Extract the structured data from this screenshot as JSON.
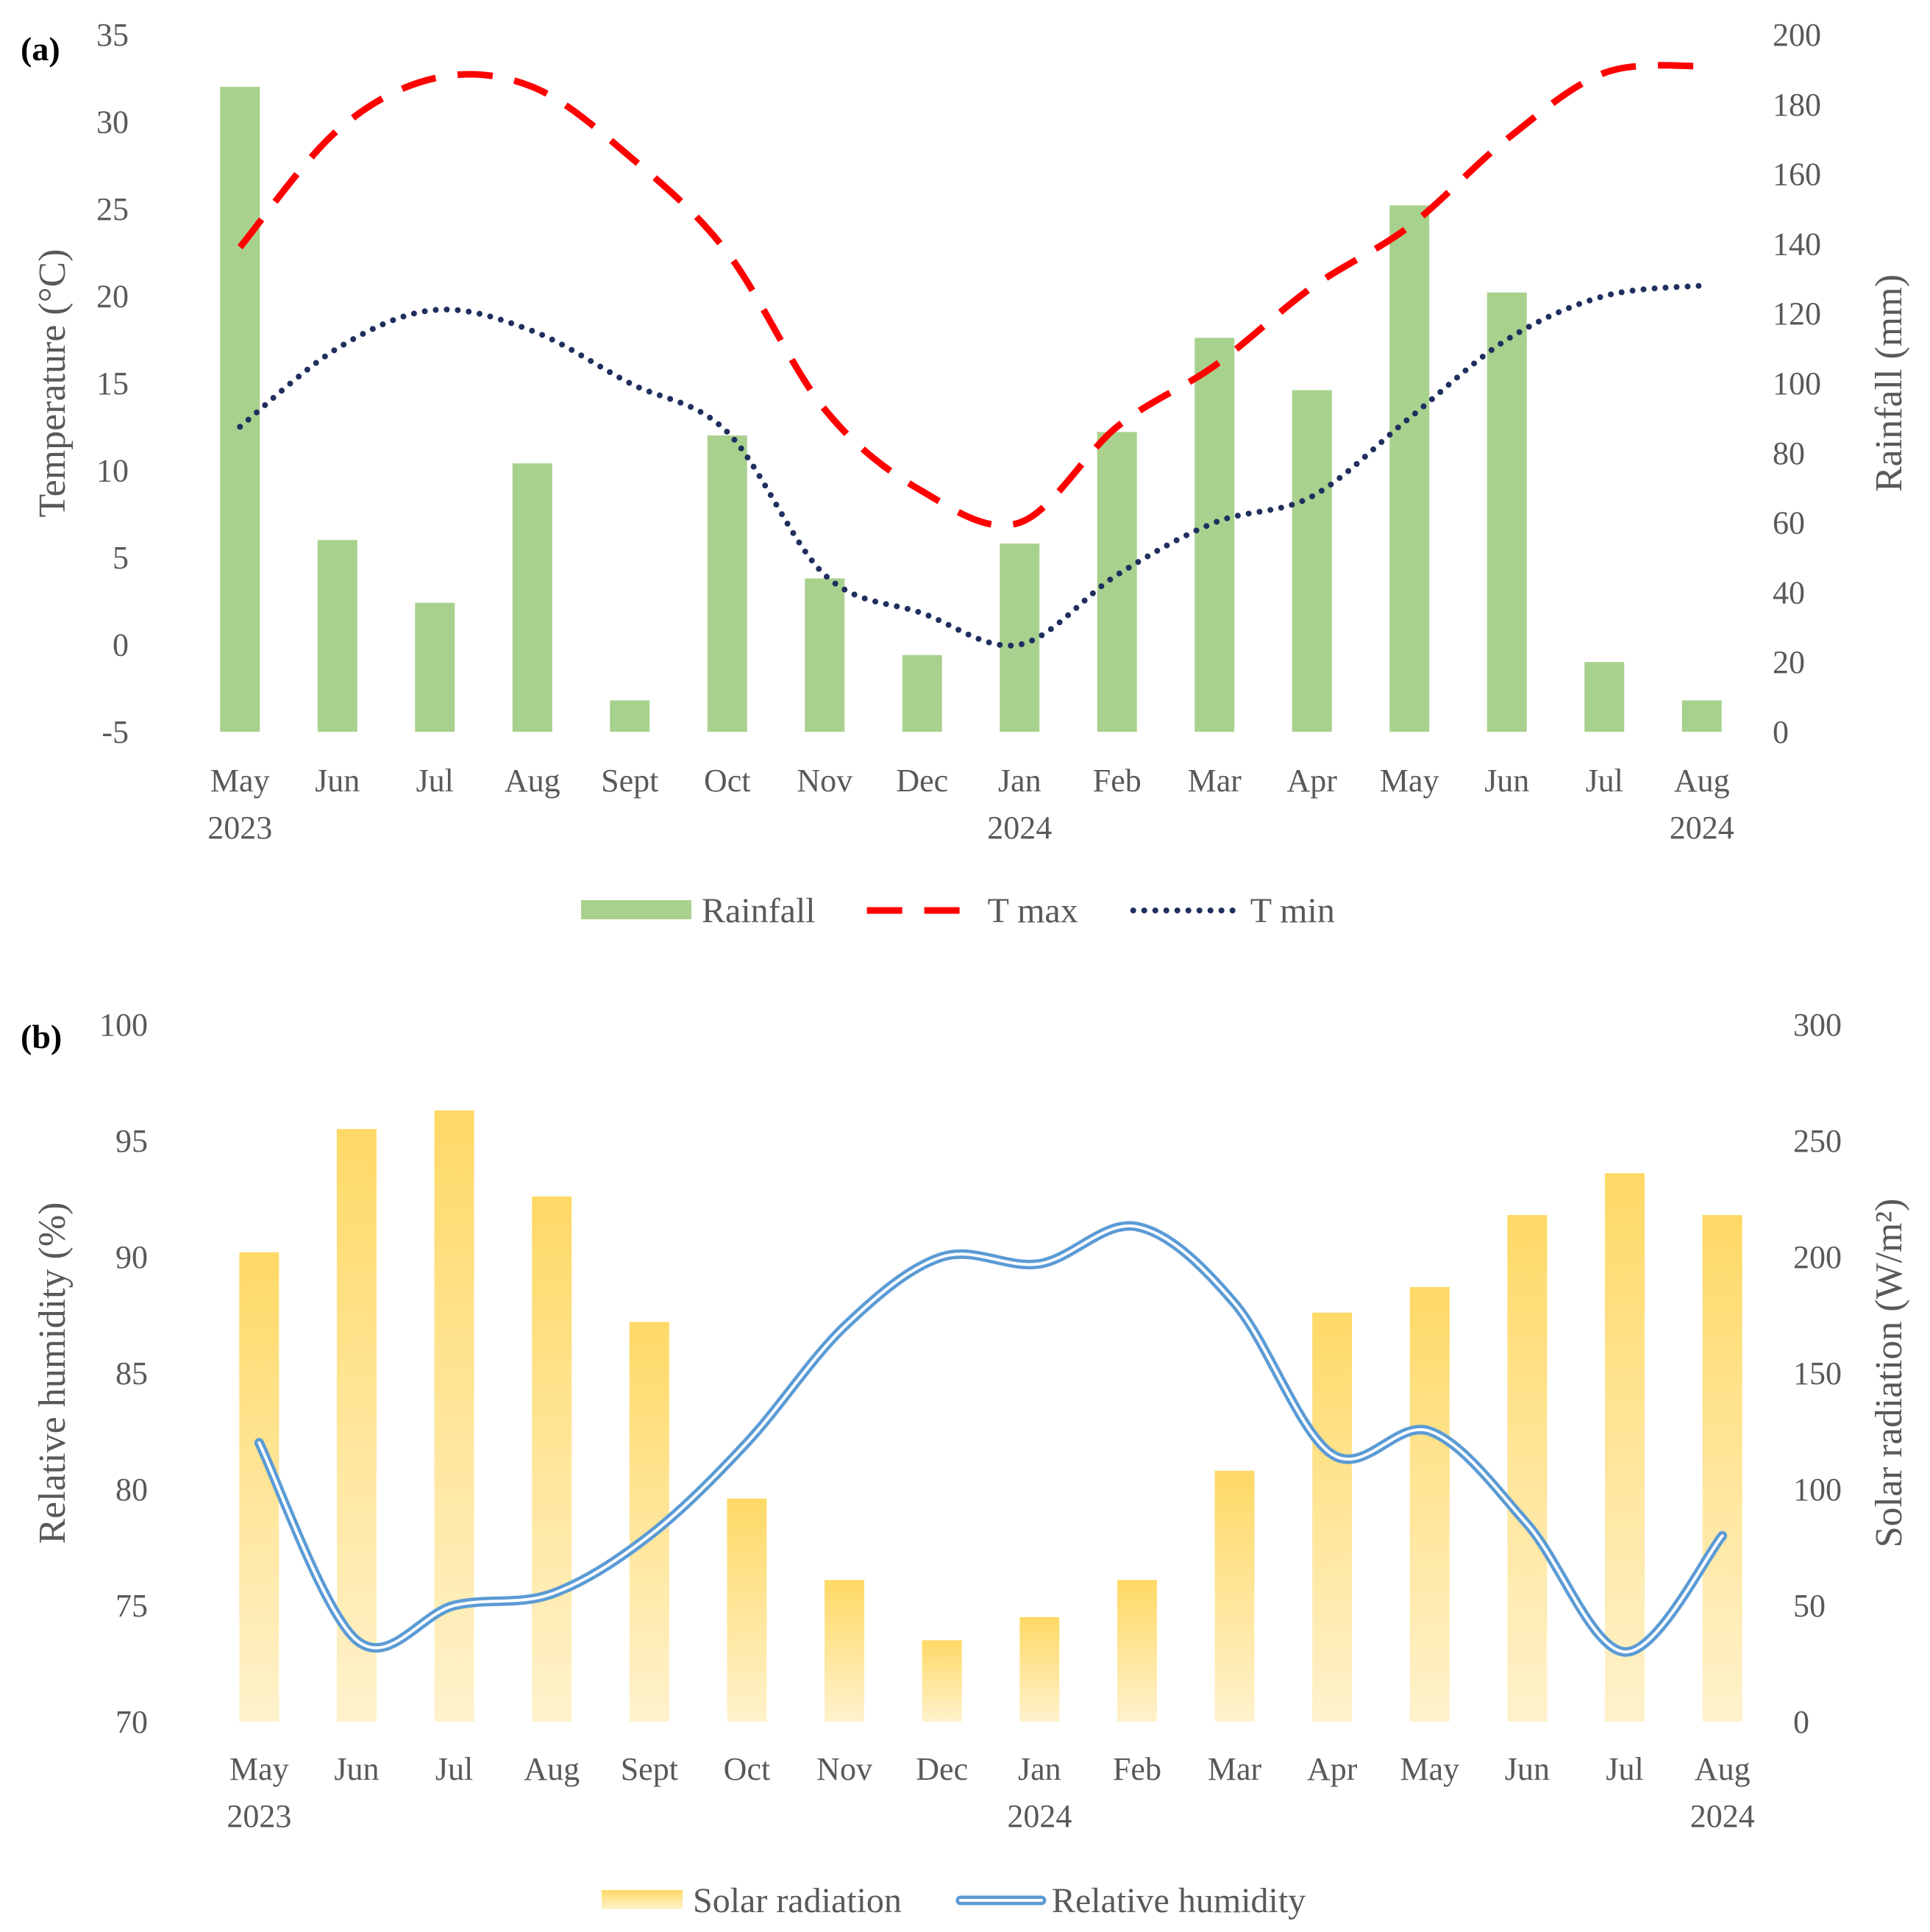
{
  "chart_data": [
    {
      "type": "bar+line",
      "panel_label": "(a)",
      "categories": [
        "May",
        "Jun",
        "Jul",
        "Aug",
        "Sept",
        "Oct",
        "Nov",
        "Dec",
        "Jan",
        "Feb",
        "Mar",
        "Apr",
        "May",
        "Jun",
        "Jul",
        "Aug"
      ],
      "category_years": [
        "2023",
        "",
        "",
        "",
        "",
        "",
        "",
        "",
        "2024",
        "",
        "",
        "",
        "",
        "",
        "",
        "2024"
      ],
      "y_left": {
        "label": "Temperature (°C)",
        "lim": [
          -5,
          35
        ],
        "ticks": [
          -5,
          0,
          5,
          10,
          15,
          20,
          25,
          30,
          35
        ]
      },
      "y_right": {
        "label": "Rainfall (mm)",
        "lim": [
          0,
          200
        ],
        "ticks": [
          0,
          20,
          40,
          60,
          80,
          100,
          120,
          140,
          160,
          180,
          200
        ]
      },
      "series": [
        {
          "name": "Rainfall",
          "kind": "bar",
          "axis": "right",
          "color": "#a9d18e",
          "values": [
            185,
            55,
            37,
            77,
            9,
            85,
            44,
            22,
            54,
            86,
            113,
            98,
            151,
            126,
            20,
            9
          ]
        },
        {
          "name": "T max",
          "kind": "line",
          "style": "dashed",
          "axis": "left",
          "color": "#ff0000",
          "values": [
            22.8,
            29.5,
            32.5,
            32.0,
            28.0,
            22.5,
            13.5,
            8.8,
            7.0,
            12.5,
            16.0,
            20.5,
            24.0,
            29.0,
            32.8,
            33.2
          ]
        },
        {
          "name": "T min",
          "kind": "line",
          "style": "dotted",
          "axis": "left",
          "color": "#1f2f5e",
          "values": [
            12.5,
            17.0,
            19.2,
            18.0,
            15.0,
            12.2,
            4.0,
            1.8,
            0.0,
            4.0,
            7.0,
            8.5,
            13.0,
            17.5,
            20.0,
            20.6
          ]
        }
      ],
      "legend": "bottom"
    },
    {
      "type": "bar+line",
      "panel_label": "(b)",
      "categories": [
        "May",
        "Jun",
        "Jul",
        "Aug",
        "Sept",
        "Oct",
        "Nov",
        "Dec",
        "Jan",
        "Feb",
        "Mar",
        "Apr",
        "May",
        "Jun",
        "Jul",
        "Aug"
      ],
      "category_years": [
        "2023",
        "",
        "",
        "",
        "",
        "",
        "",
        "",
        "2024",
        "",
        "",
        "",
        "",
        "",
        "",
        "2024"
      ],
      "y_left": {
        "label": "Relative humidity (%)",
        "lim": [
          70,
          100
        ],
        "ticks": [
          70,
          75,
          80,
          85,
          90,
          95,
          100
        ]
      },
      "y_right": {
        "label": "Solar radiation (W/m²)",
        "lim": [
          0,
          300
        ],
        "ticks": [
          0,
          50,
          100,
          150,
          200,
          250,
          300
        ]
      },
      "series": [
        {
          "name": "Solar radiation",
          "kind": "bar",
          "axis": "right",
          "color": "#ffd966",
          "values": [
            202,
            255,
            263,
            226,
            172,
            96,
            61,
            35,
            45,
            61,
            108,
            176,
            187,
            218,
            236,
            218
          ]
        },
        {
          "name": "Relative humidity",
          "kind": "line",
          "style": "double",
          "axis": "left",
          "color": "#5b9bd5",
          "values": [
            82.0,
            73.5,
            75.0,
            75.5,
            78.0,
            82.0,
            87.0,
            90.0,
            89.7,
            91.3,
            88.0,
            81.5,
            82.5,
            78.5,
            73.0,
            78.0
          ]
        }
      ],
      "legend": "bottom"
    }
  ]
}
